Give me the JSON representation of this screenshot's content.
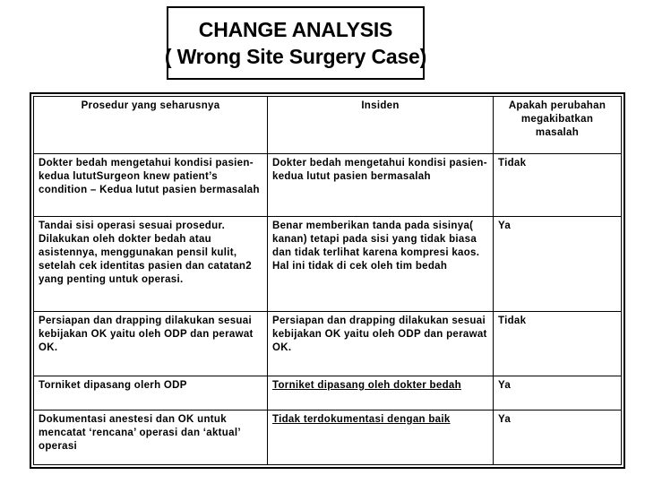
{
  "title": {
    "line1": "CHANGE ANALYSIS",
    "line2": "( Wrong Site Surgery Case)"
  },
  "table": {
    "headers": [
      "Prosedur yang seharusnya",
      "Insiden",
      "Apakah perubahan megakibatkan masalah"
    ],
    "rows": [
      {
        "prosedur": "Dokter bedah mengetahui kondisi pasien-kedua lututSurgeon knew patient’s condition – Kedua lutut pasien bermasalah",
        "insiden": "Dokter bedah mengetahui kondisi pasien-kedua lutut pasien bermasalah",
        "masalah": "Tidak"
      },
      {
        "prosedur": "Tandai sisi operasi sesuai prosedur. Dilakukan oleh dokter bedah atau asistennya, menggunakan pensil kulit, setelah cek identitas pasien dan catatan2 yang penting untuk operasi.",
        "insiden": "Benar memberikan tanda pada sisinya( kanan) tetapi pada sisi yang tidak biasa dan tidak terlihat karena kompresi kaos. Hal ini tidak di cek oleh tim bedah",
        "masalah": "Ya"
      },
      {
        "prosedur": "Persiapan dan drapping dilakukan sesuai kebijakan OK yaitu oleh ODP dan perawat OK.",
        "insiden": "Persiapan dan drapping dilakukan sesuai kebijakan OK yaitu oleh ODP dan perawat OK.",
        "masalah": "Tidak"
      },
      {
        "prosedur": "Torniket dipasang olerh ODP",
        "insiden": "Torniket dipasang oleh dokter bedah",
        "masalah": "Ya"
      },
      {
        "prosedur": "Dokumentasi anestesi dan OK untuk mencatat ‘rencana’ operasi dan ‘aktual’ operasi",
        "insiden": "Tidak terdokumentasi dengan baik",
        "masalah": "Ya"
      }
    ]
  }
}
